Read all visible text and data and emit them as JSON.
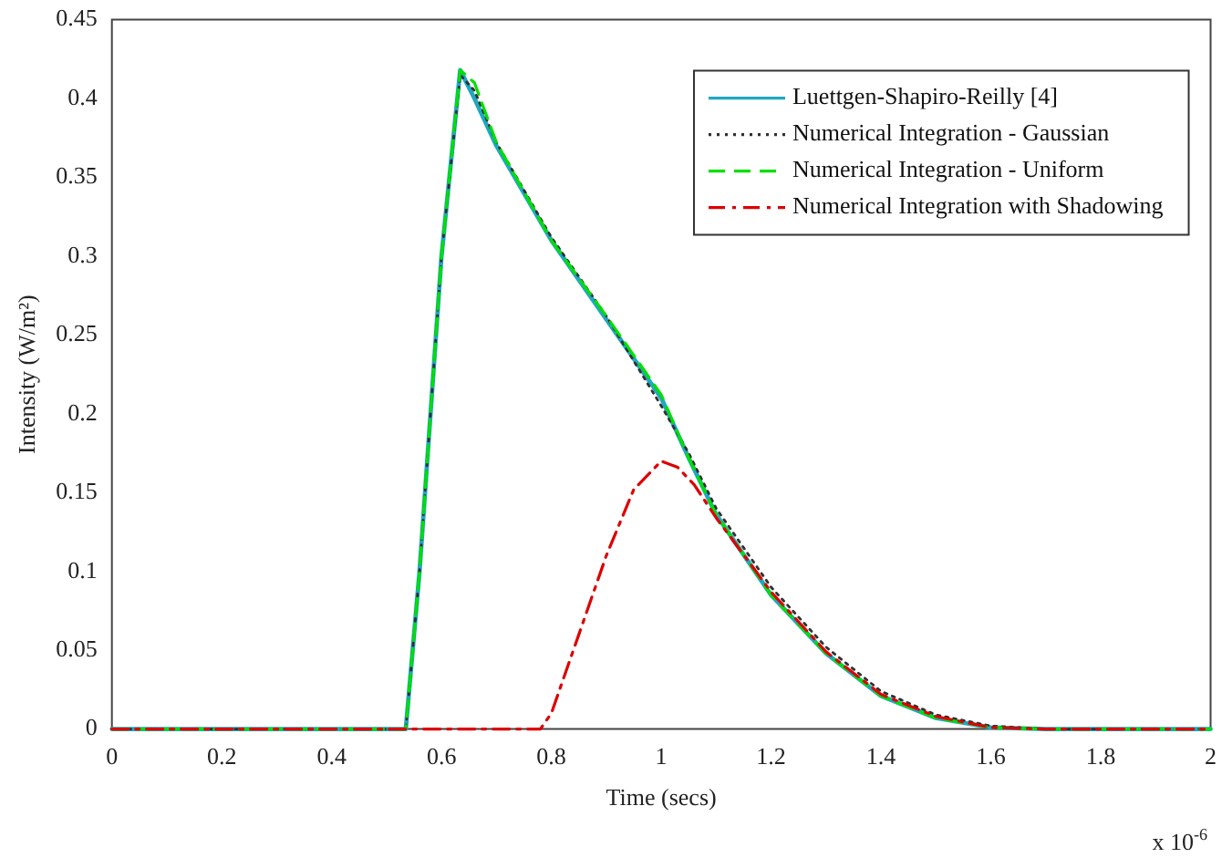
{
  "chart_data": {
    "type": "line",
    "xlabel": "Time (secs)",
    "ylabel": "Intensity (W/m²)",
    "annotations": [
      "x 10$^{-6}$"
    ],
    "xlim": [
      0,
      2
    ],
    "xticks": [
      0,
      0.2,
      0.4,
      0.6,
      0.8,
      1,
      1.2,
      1.4,
      1.6,
      1.8,
      2
    ],
    "ylim": [
      0,
      0.45
    ],
    "yticks": [
      0,
      0.05,
      0.1,
      0.15,
      0.2,
      0.25,
      0.3,
      0.35,
      0.4,
      0.45
    ],
    "grid": false,
    "legend": "top right",
    "marker": "none",
    "series": [
      {
        "name": "Luettgen-Shapiro-Reilly [4]",
        "color": "#1fa8c0",
        "line_style": "solid",
        "x": [
          0,
          0.535,
          0.56,
          0.6,
          0.634,
          0.66,
          0.7,
          0.8,
          0.9,
          1.0,
          1.05,
          1.1,
          1.2,
          1.3,
          1.4,
          1.5,
          1.6,
          1.7,
          2.0
        ],
        "values": [
          0,
          0,
          0.1,
          0.3,
          0.418,
          0.4,
          0.37,
          0.31,
          0.26,
          0.21,
          0.172,
          0.136,
          0.085,
          0.048,
          0.021,
          0.007,
          0.001,
          0,
          0
        ]
      },
      {
        "name": "Numerical Integration - Gaussian",
        "color": "#303030",
        "line_style": "dotted",
        "x": [
          0,
          0.535,
          0.56,
          0.6,
          0.634,
          0.66,
          0.7,
          0.8,
          0.9,
          1.0,
          1.05,
          1.1,
          1.2,
          1.3,
          1.4,
          1.5,
          1.6,
          1.7,
          2.0
        ],
        "values": [
          0,
          0,
          0.1,
          0.3,
          0.415,
          0.405,
          0.372,
          0.312,
          0.262,
          0.205,
          0.175,
          0.14,
          0.09,
          0.052,
          0.024,
          0.009,
          0.002,
          0,
          0
        ]
      },
      {
        "name": "Numerical Integration - Uniform",
        "color": "#00e000",
        "line_style": "dashed",
        "x": [
          0,
          0.535,
          0.56,
          0.6,
          0.634,
          0.66,
          0.7,
          0.8,
          0.9,
          1.0,
          1.05,
          1.1,
          1.2,
          1.3,
          1.4,
          1.5,
          1.6,
          1.7,
          2.0
        ],
        "values": [
          0,
          0,
          0.1,
          0.3,
          0.418,
          0.41,
          0.372,
          0.31,
          0.262,
          0.212,
          0.172,
          0.136,
          0.085,
          0.048,
          0.021,
          0.007,
          0.001,
          0,
          0
        ]
      },
      {
        "name": "Numerical Integration with Shadowing",
        "color": "#dd0000",
        "line_style": "dashdot",
        "x": [
          0,
          0.78,
          0.8,
          0.85,
          0.9,
          0.95,
          1.0,
          1.03,
          1.06,
          1.1,
          1.2,
          1.3,
          1.4,
          1.5,
          1.6,
          1.7,
          2.0
        ],
        "values": [
          0,
          0,
          0.01,
          0.06,
          0.11,
          0.152,
          0.17,
          0.166,
          0.155,
          0.134,
          0.087,
          0.049,
          0.022,
          0.008,
          0.001,
          0,
          0
        ]
      }
    ]
  }
}
